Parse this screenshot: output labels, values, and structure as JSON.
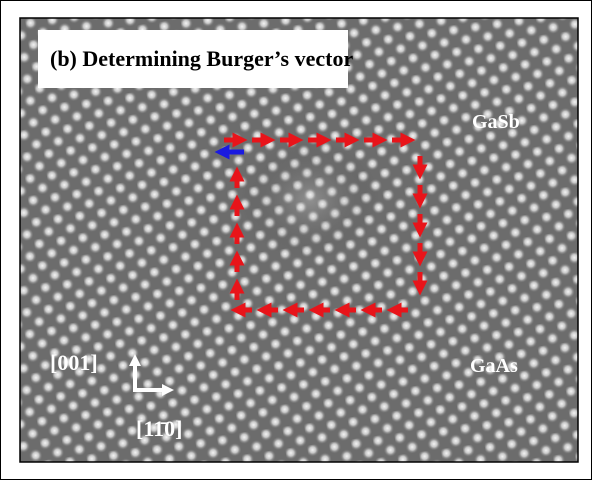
{
  "title": "(b) Determining Burger’s vector",
  "labels": {
    "top_material": "GaSb",
    "bottom_material": "GaAs",
    "vertical_direction": "[001]",
    "horizontal_direction": "[11̄0]"
  }
}
